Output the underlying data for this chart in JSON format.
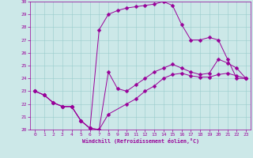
{
  "xlabel": "Windchill (Refroidissement éolien,°C)",
  "xlim": [
    -0.5,
    23.5
  ],
  "ylim": [
    20,
    30
  ],
  "yticks": [
    20,
    21,
    22,
    23,
    24,
    25,
    26,
    27,
    28,
    29,
    30
  ],
  "xticks": [
    0,
    1,
    2,
    3,
    4,
    5,
    6,
    7,
    8,
    9,
    10,
    11,
    12,
    13,
    14,
    15,
    16,
    17,
    18,
    19,
    20,
    21,
    22,
    23
  ],
  "line_color": "#990099",
  "bg_color": "#cce8e8",
  "grid_color": "#99cccc",
  "c1x": [
    0,
    1,
    2,
    3,
    4,
    5,
    6,
    7,
    8,
    10,
    11,
    12,
    13,
    14,
    15,
    16,
    17,
    18,
    19,
    20,
    21,
    22,
    23
  ],
  "c1y": [
    23.0,
    22.7,
    22.1,
    21.8,
    21.8,
    20.7,
    20.1,
    20.0,
    21.2,
    22.0,
    22.4,
    23.0,
    23.4,
    24.0,
    24.3,
    24.4,
    24.2,
    24.1,
    24.1,
    24.3,
    24.4,
    24.2,
    24.0
  ],
  "c2x": [
    0,
    1,
    2,
    3,
    4,
    5,
    6,
    7,
    8,
    9,
    10,
    11,
    12,
    13,
    14,
    15,
    16,
    17,
    18,
    19,
    20,
    21,
    22,
    23
  ],
  "c2y": [
    23.0,
    22.7,
    22.1,
    21.8,
    21.8,
    20.7,
    20.1,
    20.0,
    24.5,
    23.2,
    23.0,
    23.5,
    24.0,
    24.5,
    24.8,
    25.1,
    24.8,
    24.5,
    24.3,
    24.4,
    25.5,
    25.2,
    24.8,
    24.0
  ],
  "c3x": [
    0,
    1,
    2,
    3,
    4,
    5,
    6,
    7,
    8,
    9,
    10,
    11,
    12,
    13,
    14,
    15,
    16,
    17,
    18,
    19,
    20,
    21,
    22,
    23
  ],
  "c3y": [
    23.0,
    22.7,
    22.1,
    21.8,
    21.8,
    20.7,
    20.1,
    27.8,
    29.0,
    29.3,
    29.5,
    29.6,
    29.7,
    29.8,
    30.0,
    29.7,
    28.2,
    27.0,
    27.0,
    27.2,
    27.0,
    25.5,
    24.0,
    24.0
  ],
  "marker_size": 2.5
}
